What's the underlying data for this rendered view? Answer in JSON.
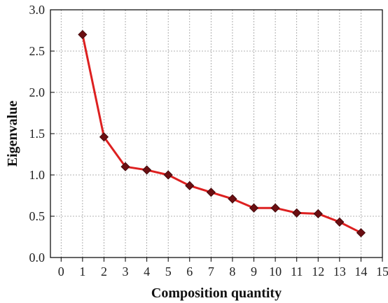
{
  "chart_data": {
    "type": "line",
    "xlabel": "Composition quantity",
    "ylabel": "Eigenvalue",
    "xlim": [
      -0.5,
      15
    ],
    "ylim": [
      0,
      3.0
    ],
    "xticks": [
      "0",
      "1",
      "2",
      "3",
      "4",
      "5",
      "6",
      "7",
      "8",
      "9",
      "10",
      "11",
      "12",
      "13",
      "14",
      "15"
    ],
    "yticks": [
      "0.0",
      "0.5",
      "1.0",
      "1.5",
      "2.0",
      "2.5",
      "3.0"
    ],
    "grid": true,
    "series": [
      {
        "x": [
          1,
          2,
          3,
          4,
          5,
          6,
          7,
          8,
          9,
          10,
          11,
          12,
          13,
          14
        ],
        "y": [
          2.7,
          1.46,
          1.1,
          1.06,
          1.0,
          0.87,
          0.79,
          0.71,
          0.6,
          0.6,
          0.54,
          0.53,
          0.43,
          0.3
        ],
        "line_color": "#dd2020",
        "marker": "diamond",
        "marker_color": "#6b0f12"
      }
    ]
  }
}
